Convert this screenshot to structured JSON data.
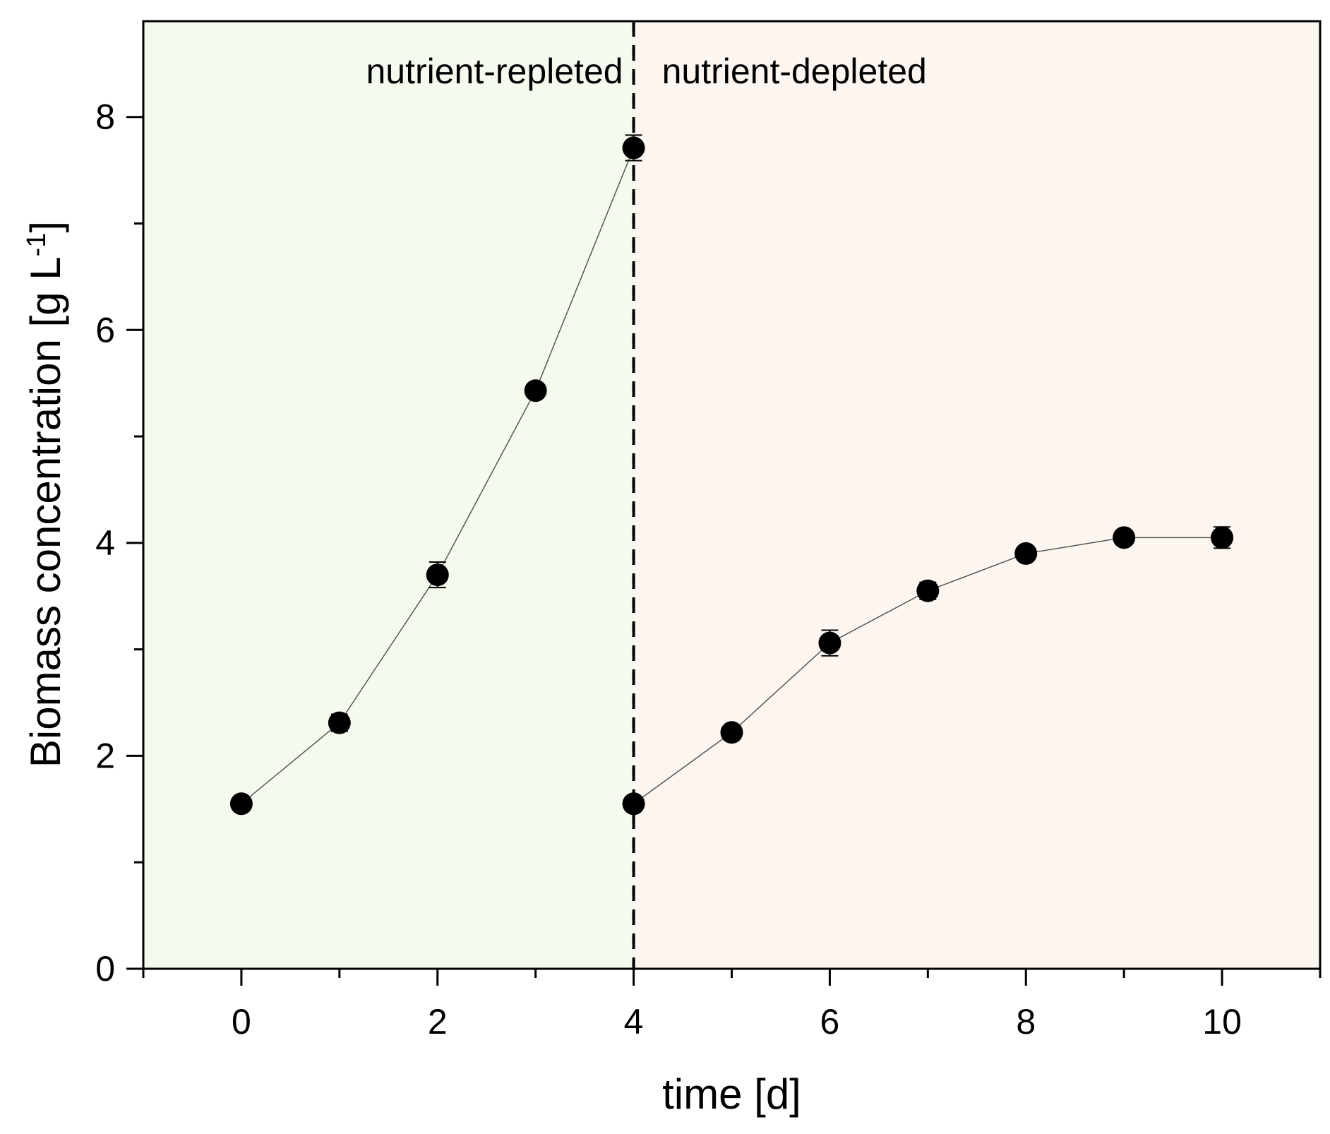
{
  "chart_data": {
    "type": "line",
    "title": "",
    "xlabel": "time [d]",
    "ylabel": {
      "text": "Biomass concentration [g L",
      "superscript": "-1",
      "close": "]"
    },
    "xlim": [
      -1,
      11
    ],
    "ylim": [
      0,
      8.9
    ],
    "xticks": [
      0,
      2,
      4,
      6,
      8,
      10
    ],
    "xtick_labels": [
      "0",
      "2",
      "4",
      "6",
      "8",
      "10"
    ],
    "xminor_ticks": [
      -1,
      1,
      3,
      5,
      7,
      9,
      11
    ],
    "yticks": [
      0,
      2,
      4,
      6,
      8
    ],
    "ytick_labels": [
      "0",
      "2",
      "4",
      "6",
      "8"
    ],
    "yminor_ticks": [
      1,
      3,
      5,
      7
    ],
    "grid": false,
    "divider_x": 4,
    "regions": [
      {
        "name": "nutrient-repleted",
        "label": "nutrient-repleted",
        "x_range": [
          -1,
          4
        ],
        "color": "#f4fbee",
        "label_anchor": "end"
      },
      {
        "name": "nutrient-depleted",
        "label": "nutrient-depleted",
        "x_range": [
          4,
          11
        ],
        "color": "#fdf6f0",
        "label_anchor": "start"
      }
    ],
    "series": [
      {
        "name": "nutrient-repleted",
        "x": [
          0,
          1,
          2,
          3,
          4
        ],
        "y": [
          1.55,
          2.31,
          3.7,
          5.43,
          7.71
        ],
        "error": [
          0.03,
          0.08,
          0.12,
          0.05,
          0.12
        ]
      },
      {
        "name": "nutrient-depleted",
        "x": [
          4,
          5,
          6,
          7,
          8,
          9,
          10
        ],
        "y": [
          1.55,
          2.22,
          3.06,
          3.55,
          3.9,
          4.05,
          4.05
        ],
        "error": [
          0.03,
          0.06,
          0.12,
          0.08,
          0.05,
          0.04,
          0.1
        ]
      }
    ]
  }
}
